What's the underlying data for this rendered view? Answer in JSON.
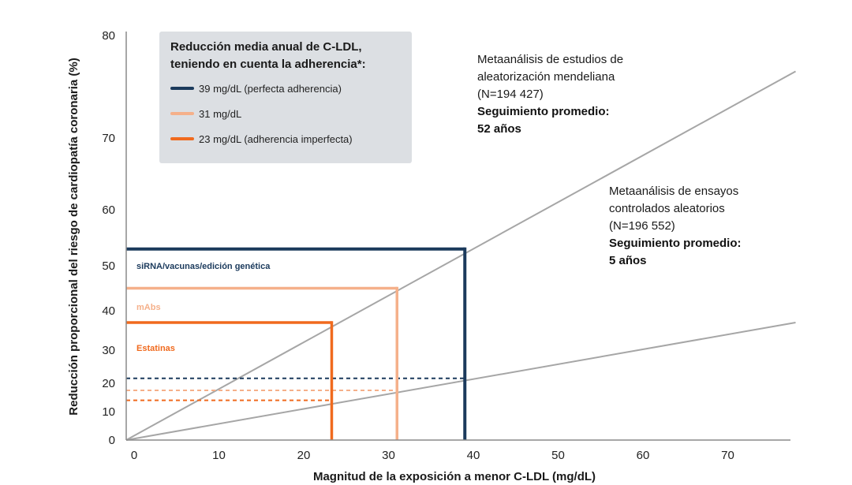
{
  "chart_data": {
    "type": "line",
    "xlabel": "Magnitud de la exposición a menor C-LDL  (mg/dL)",
    "ylabel": "Reducción proporcional del riesgo de cardiopatía coronaria (%)",
    "xlim": [
      0,
      78
    ],
    "ylim": [
      0,
      80
    ],
    "x_ticks": [
      "0",
      "10",
      "20",
      "30",
      "40",
      "50",
      "60",
      "70"
    ],
    "y_ticks": [
      "0",
      "10",
      "20",
      "30",
      "40",
      "50",
      "60",
      "70",
      "80"
    ],
    "series": [
      {
        "name": "Metaanálisis de estudios de aleatorización mendeliana",
        "x": [
          0,
          78
        ],
        "y": [
          0,
          76.5
        ],
        "color": "#a6a6a6"
      },
      {
        "name": "Metaanálisis de ensayos controlados aleatorios",
        "x": [
          0,
          78
        ],
        "y": [
          0,
          37
        ],
        "color": "#a6a6a6"
      }
    ],
    "reference_lines": [
      {
        "label": "siRNA/vacunas/edición genética",
        "ldl": 39,
        "mr_reduction": 53,
        "rct_reduction": 21.5,
        "color": "#1b3a5c"
      },
      {
        "label": "mAbs",
        "ldl": 31,
        "mr_reduction": 45,
        "rct_reduction": 17.5,
        "color": "#f5b08a"
      },
      {
        "label": "Estatinas",
        "ldl": 23.3,
        "mr_reduction": 37,
        "rct_reduction": 14,
        "color": "#f06a1e"
      }
    ],
    "legend": {
      "title_line1": "Reducción media anual de C-LDL,",
      "title_line2": "teniendo en cuenta la adherencia*:",
      "placement": "top-left",
      "entries": [
        {
          "label": "39 mg/dL (perfecta adherencia)",
          "color": "#1b3a5c"
        },
        {
          "label": "31 mg/dL",
          "color": "#f5b08a"
        },
        {
          "label": "23 mg/dL (adherencia imperfecta)",
          "color": "#f06a1e"
        }
      ]
    },
    "annotations": {
      "mendelian": {
        "line1": "Metaanálisis de estudios de",
        "line2": "aleatorización mendeliana",
        "line3": "(N=194 427)",
        "bold1": "Seguimiento promedio:",
        "bold2": "52 años"
      },
      "rct": {
        "line1": "Metaanálisis de ensayos",
        "line2": "controlados aleatorios",
        "line3": "(N=196 552)",
        "bold1": "Seguimiento promedio:",
        "bold2": "5 años"
      }
    }
  }
}
